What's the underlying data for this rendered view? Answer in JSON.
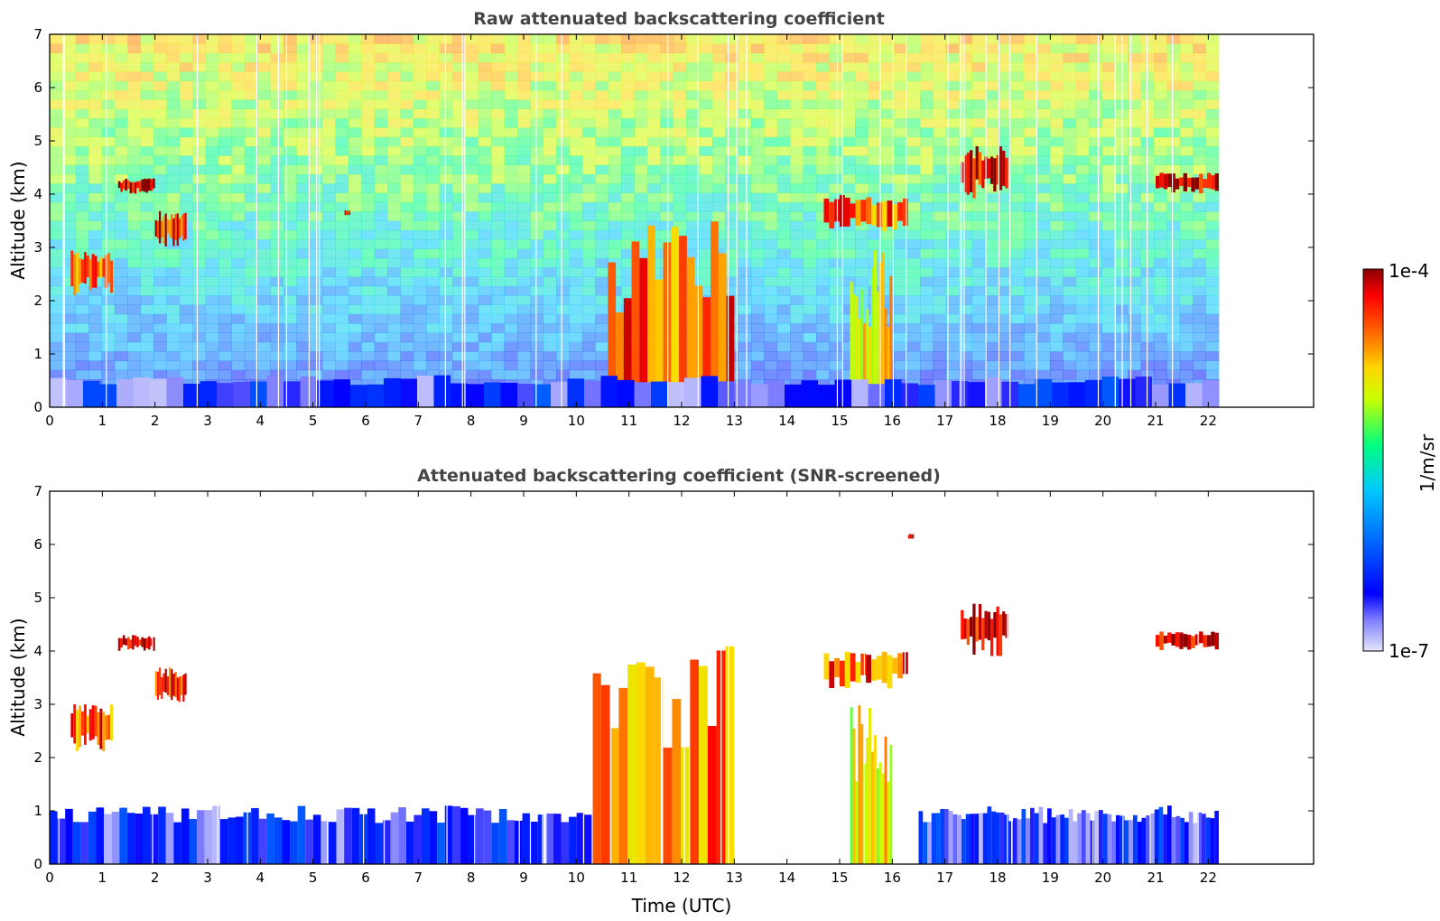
{
  "chart_data": [
    {
      "type": "heatmap",
      "title": "Raw attenuated backscattering coefficient",
      "xlabel": "",
      "ylabel": "Altitude (km)",
      "xlim": [
        0,
        24
      ],
      "ylim": [
        0,
        7
      ],
      "x_ticks": [
        "0",
        "1",
        "2",
        "3",
        "4",
        "5",
        "6",
        "7",
        "8",
        "9",
        "10",
        "11",
        "12",
        "13",
        "14",
        "15",
        "16",
        "17",
        "18",
        "19",
        "20",
        "21",
        "22"
      ],
      "y_ticks": [
        "0",
        "1",
        "2",
        "3",
        "4",
        "5",
        "6",
        "7"
      ],
      "data_end_time": 22.2,
      "features": [
        {
          "kind": "cloud",
          "time": [
            1.3,
            2.0
          ],
          "altitude": [
            4.0,
            4.3
          ],
          "level": 0.95
        },
        {
          "kind": "cloud",
          "time": [
            2.0,
            2.6
          ],
          "altitude": [
            3.0,
            3.7
          ],
          "level": 0.9
        },
        {
          "kind": "cloud",
          "time": [
            0.4,
            1.2
          ],
          "altitude": [
            2.1,
            3.0
          ],
          "level": 0.85
        },
        {
          "kind": "cloud",
          "time": [
            5.6,
            5.7
          ],
          "altitude": [
            3.6,
            3.7
          ],
          "level": 0.9
        },
        {
          "kind": "rain",
          "time": [
            10.6,
            13.0
          ],
          "altitude": [
            0.0,
            3.5
          ],
          "level": 0.85
        },
        {
          "kind": "cloud",
          "time": [
            14.7,
            16.3
          ],
          "altitude": [
            3.3,
            4.0
          ],
          "level": 0.85
        },
        {
          "kind": "rain",
          "time": [
            15.2,
            16.0
          ],
          "altitude": [
            0.0,
            3.0
          ],
          "level": 0.7
        },
        {
          "kind": "cloud",
          "time": [
            17.3,
            18.2
          ],
          "altitude": [
            3.9,
            4.9
          ],
          "level": 0.95
        },
        {
          "kind": "cloud",
          "time": [
            21.0,
            22.2
          ],
          "altitude": [
            4.0,
            4.4
          ],
          "level": 0.95
        },
        {
          "kind": "boundary_layer",
          "time": [
            0.0,
            22.2
          ],
          "altitude": [
            0.0,
            0.6
          ],
          "level": 0.15
        }
      ]
    },
    {
      "type": "heatmap",
      "title": "Attenuated backscattering coefficient (SNR-screened)",
      "xlabel": "Time (UTC)",
      "ylabel": "Altitude (km)",
      "xlim": [
        0,
        24
      ],
      "ylim": [
        0,
        7
      ],
      "x_ticks": [
        "0",
        "1",
        "2",
        "3",
        "4",
        "5",
        "6",
        "7",
        "8",
        "9",
        "10",
        "11",
        "12",
        "13",
        "14",
        "15",
        "16",
        "17",
        "18",
        "19",
        "20",
        "21",
        "22"
      ],
      "y_ticks": [
        "0",
        "1",
        "2",
        "3",
        "4",
        "5",
        "6",
        "7"
      ],
      "data_end_time": 22.2,
      "features": [
        {
          "kind": "boundary_layer",
          "time": [
            0.0,
            10.3
          ],
          "altitude": [
            0.0,
            1.1
          ],
          "level": 0.15
        },
        {
          "kind": "cloud",
          "time": [
            1.3,
            2.0
          ],
          "altitude": [
            4.0,
            4.3
          ],
          "level": 0.95
        },
        {
          "kind": "cloud",
          "time": [
            2.0,
            2.6
          ],
          "altitude": [
            3.0,
            3.7
          ],
          "level": 0.9
        },
        {
          "kind": "cloud",
          "time": [
            0.4,
            1.2
          ],
          "altitude": [
            2.1,
            3.0
          ],
          "level": 0.85
        },
        {
          "kind": "rain",
          "time": [
            10.3,
            13.0
          ],
          "altitude": [
            0.0,
            4.1
          ],
          "level": 0.8
        },
        {
          "kind": "cloud",
          "time": [
            14.7,
            16.3
          ],
          "altitude": [
            3.3,
            4.0
          ],
          "level": 0.85
        },
        {
          "kind": "rain",
          "time": [
            15.2,
            16.0
          ],
          "altitude": [
            0.0,
            3.0
          ],
          "level": 0.7
        },
        {
          "kind": "cloud",
          "time": [
            16.3,
            16.4
          ],
          "altitude": [
            6.1,
            6.2
          ],
          "level": 0.9
        },
        {
          "kind": "cloud",
          "time": [
            17.3,
            18.2
          ],
          "altitude": [
            3.9,
            4.9
          ],
          "level": 0.95
        },
        {
          "kind": "cloud",
          "time": [
            21.0,
            22.2
          ],
          "altitude": [
            4.0,
            4.4
          ],
          "level": 0.95
        },
        {
          "kind": "boundary_layer",
          "time": [
            16.5,
            22.2
          ],
          "altitude": [
            0.0,
            1.1
          ],
          "level": 0.15
        }
      ]
    }
  ],
  "colorbar": {
    "label": "1/m/sr",
    "max_label": "1e-4",
    "min_label": "1e-7",
    "colormap": [
      "#e6e6fa",
      "#0000ff",
      "#00bfff",
      "#00ff80",
      "#ffff00",
      "#ff8000",
      "#ff0000",
      "#8b0000"
    ]
  }
}
